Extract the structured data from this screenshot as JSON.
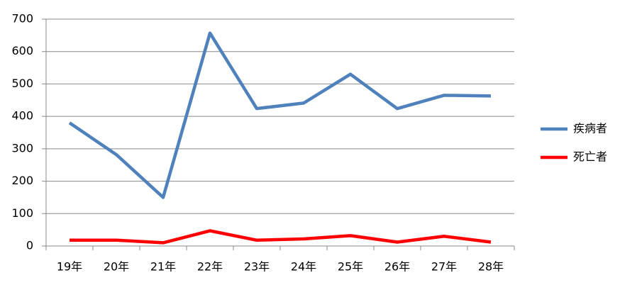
{
  "chart_data": {
    "type": "line",
    "categories": [
      "19年",
      "20年",
      "21年",
      "22年",
      "23年",
      "24年",
      "25年",
      "26年",
      "27年",
      "28年"
    ],
    "series": [
      {
        "name": "疾病者",
        "color": "#4f81bd",
        "values": [
          380,
          282,
          150,
          657,
          424,
          441,
          530,
          424,
          465,
          463
        ]
      },
      {
        "name": "死亡者",
        "color": "#ff0000",
        "values": [
          18,
          18,
          10,
          47,
          18,
          22,
          32,
          12,
          30,
          12
        ]
      }
    ],
    "ylim": [
      0,
      700
    ],
    "yticks": [
      0,
      100,
      200,
      300,
      400,
      500,
      600,
      700
    ],
    "grid": true,
    "legend": "right"
  }
}
